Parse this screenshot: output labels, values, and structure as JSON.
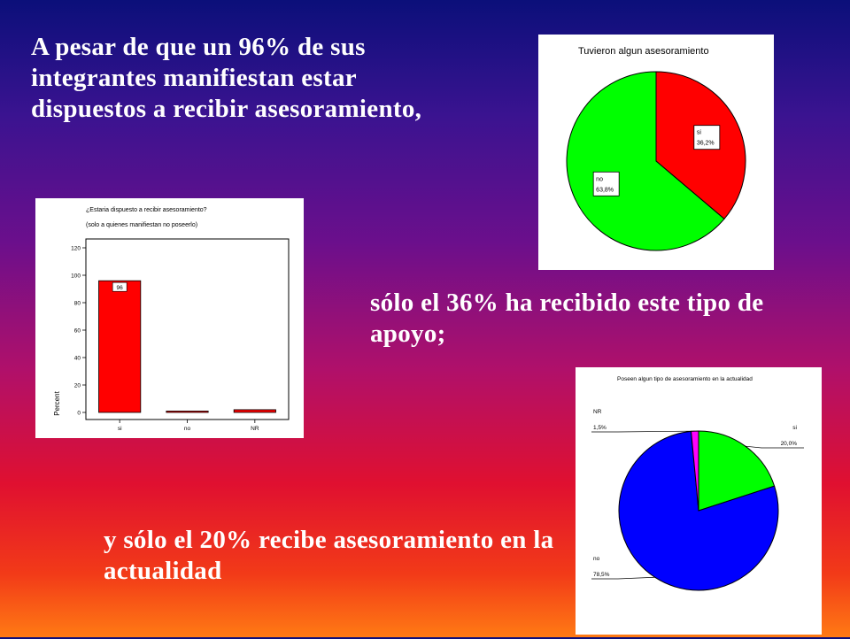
{
  "slide": {
    "text1": "A pesar de que un 96% de sus integrantes manifiestan estar dispuestos a recibir asesoramiento,",
    "text2": "sólo el 36% ha recibido este tipo de apoyo;",
    "text3": "y sólo el 20% recibe asesoramiento en la actualidad"
  },
  "chart_data": [
    {
      "type": "pie",
      "title": "Tuvieron algun asesoramiento",
      "slices": [
        {
          "label": "si",
          "value": 36.2,
          "value_label": "36,2%",
          "color": "#ff0000"
        },
        {
          "label": "no",
          "value": 63.8,
          "value_label": "63,8%",
          "color": "#00ff00"
        }
      ]
    },
    {
      "type": "bar",
      "title": "¿Estaria dispuesto a recibir asesoramiento?",
      "subtitle": "(solo a quienes manifiestan no poseerlo)",
      "categories": [
        "si",
        "no",
        "NR"
      ],
      "values": [
        96,
        1,
        2
      ],
      "data_labels": [
        "96",
        "",
        ""
      ],
      "ylabel": "Percent",
      "xlabel": "",
      "ylim": [
        0,
        120
      ],
      "yticks": [
        0,
        20,
        40,
        60,
        80,
        100,
        120
      ],
      "color": "#ff0000",
      "grid": false
    },
    {
      "type": "pie",
      "title": "Poseen algun tipo de asesoramiento en la actualidad",
      "slices": [
        {
          "label": "si",
          "value": 20.0,
          "value_label": "20,0%",
          "color": "#00ff00"
        },
        {
          "label": "no",
          "value": 78.5,
          "value_label": "78,5%",
          "color": "#0000ff"
        },
        {
          "label": "NR",
          "value": 1.5,
          "value_label": "1,5%",
          "color": "#ff00ff"
        }
      ]
    }
  ]
}
